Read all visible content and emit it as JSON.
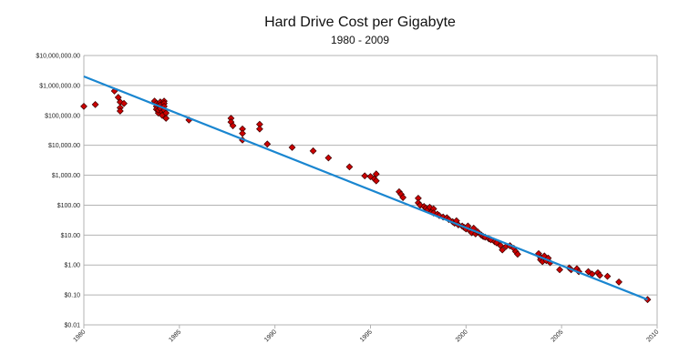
{
  "chart_data": {
    "type": "scatter",
    "title": "Hard Drive Cost per Gigabyte",
    "subtitle": "1980 - 2009",
    "xlabel": "",
    "ylabel": "",
    "xlim": [
      1980,
      2010
    ],
    "ylim": [
      0.01,
      10000000
    ],
    "y_scale": "log",
    "grid": true,
    "legend": "none",
    "x_ticks": [
      {
        "value": 1980,
        "label": "1980"
      },
      {
        "value": 1985,
        "label": "1985"
      },
      {
        "value": 1990,
        "label": "1990"
      },
      {
        "value": 1995,
        "label": "1995"
      },
      {
        "value": 2000,
        "label": "2000"
      },
      {
        "value": 2005,
        "label": "2005"
      },
      {
        "value": 2010,
        "label": "2010"
      }
    ],
    "y_ticks": [
      {
        "value": 10000000,
        "label": "$10,000,000.00"
      },
      {
        "value": 1000000,
        "label": "$1,000,000.00"
      },
      {
        "value": 100000,
        "label": "$100,000.00"
      },
      {
        "value": 10000,
        "label": "$10,000.00"
      },
      {
        "value": 1000,
        "label": "$1,000.00"
      },
      {
        "value": 100,
        "label": "$100.00"
      },
      {
        "value": 10,
        "label": "$10.00"
      },
      {
        "value": 1,
        "label": "$1.00"
      },
      {
        "value": 0.1,
        "label": "$0.10"
      },
      {
        "value": 0.01,
        "label": "$0.01"
      }
    ],
    "trendline": {
      "x": [
        1980,
        2009.5
      ],
      "y": [
        2000000,
        0.07
      ],
      "color": "#1a86d0"
    },
    "points_color": "#cc0000",
    "points": [
      [
        1980.0,
        200000
      ],
      [
        1980.6,
        230000
      ],
      [
        1981.6,
        650000
      ],
      [
        1981.8,
        400000
      ],
      [
        1981.9,
        280000
      ],
      [
        1981.9,
        180000
      ],
      [
        1981.9,
        140000
      ],
      [
        1982.1,
        250000
      ],
      [
        1983.7,
        300000
      ],
      [
        1983.8,
        250000
      ],
      [
        1983.8,
        200000
      ],
      [
        1983.8,
        160000
      ],
      [
        1983.9,
        120000
      ],
      [
        1983.9,
        150000
      ],
      [
        1984.0,
        280000
      ],
      [
        1984.0,
        220000
      ],
      [
        1984.0,
        170000
      ],
      [
        1984.1,
        130000
      ],
      [
        1984.1,
        100000
      ],
      [
        1984.2,
        300000
      ],
      [
        1984.2,
        250000
      ],
      [
        1984.2,
        200000
      ],
      [
        1984.2,
        150000
      ],
      [
        1984.3,
        120000
      ],
      [
        1984.3,
        80000
      ],
      [
        1985.5,
        70000
      ],
      [
        1987.7,
        80000
      ],
      [
        1987.7,
        60000
      ],
      [
        1987.8,
        45000
      ],
      [
        1988.3,
        35000
      ],
      [
        1988.3,
        25000
      ],
      [
        1988.3,
        15000
      ],
      [
        1989.2,
        50000
      ],
      [
        1989.2,
        35000
      ],
      [
        1989.6,
        11000
      ],
      [
        1990.9,
        8500
      ],
      [
        1992.0,
        6500
      ],
      [
        1992.8,
        3800
      ],
      [
        1993.9,
        1900
      ],
      [
        1994.7,
        950
      ],
      [
        1995.0,
        900
      ],
      [
        1995.2,
        750
      ],
      [
        1995.3,
        1100
      ],
      [
        1995.3,
        650
      ],
      [
        1996.5,
        280
      ],
      [
        1996.6,
        230
      ],
      [
        1996.7,
        180
      ],
      [
        1997.5,
        170
      ],
      [
        1997.5,
        120
      ],
      [
        1997.6,
        100
      ],
      [
        1997.8,
        90
      ],
      [
        1997.9,
        80
      ],
      [
        1998.0,
        70
      ],
      [
        1998.1,
        85
      ],
      [
        1998.2,
        60
      ],
      [
        1998.3,
        75
      ],
      [
        1998.3,
        55
      ],
      [
        1998.5,
        50
      ],
      [
        1998.6,
        45
      ],
      [
        1998.8,
        40
      ],
      [
        1999.0,
        38
      ],
      [
        1999.1,
        33
      ],
      [
        1999.3,
        28
      ],
      [
        1999.4,
        25
      ],
      [
        1999.5,
        30
      ],
      [
        1999.6,
        22
      ],
      [
        1999.8,
        20
      ],
      [
        1999.9,
        18
      ],
      [
        2000.0,
        16
      ],
      [
        2000.1,
        20
      ],
      [
        2000.2,
        14
      ],
      [
        2000.3,
        12
      ],
      [
        2000.4,
        17
      ],
      [
        2000.5,
        11
      ],
      [
        2000.6,
        13
      ],
      [
        2000.8,
        10
      ],
      [
        2000.9,
        9
      ],
      [
        2001.0,
        8.5
      ],
      [
        2001.2,
        7.5
      ],
      [
        2001.3,
        7
      ],
      [
        2001.5,
        6
      ],
      [
        2001.6,
        5.5
      ],
      [
        2001.8,
        4.5
      ],
      [
        2001.9,
        3.2
      ],
      [
        2002.1,
        4.2
      ],
      [
        2002.3,
        4.4
      ],
      [
        2002.5,
        3.6
      ],
      [
        2002.6,
        2.8
      ],
      [
        2002.7,
        2.3
      ],
      [
        2003.8,
        2.4
      ],
      [
        2003.9,
        1.8
      ],
      [
        2003.9,
        1.5
      ],
      [
        2004.0,
        1.3
      ],
      [
        2004.1,
        2.0
      ],
      [
        2004.2,
        1.4
      ],
      [
        2004.3,
        1.7
      ],
      [
        2004.4,
        1.2
      ],
      [
        2004.9,
        0.7
      ],
      [
        2005.4,
        0.8
      ],
      [
        2005.5,
        0.7
      ],
      [
        2005.8,
        0.75
      ],
      [
        2005.9,
        0.6
      ],
      [
        2006.4,
        0.6
      ],
      [
        2006.6,
        0.5
      ],
      [
        2006.9,
        0.55
      ],
      [
        2007.0,
        0.45
      ],
      [
        2007.4,
        0.42
      ],
      [
        2008.0,
        0.27
      ],
      [
        2009.5,
        0.07
      ]
    ]
  }
}
